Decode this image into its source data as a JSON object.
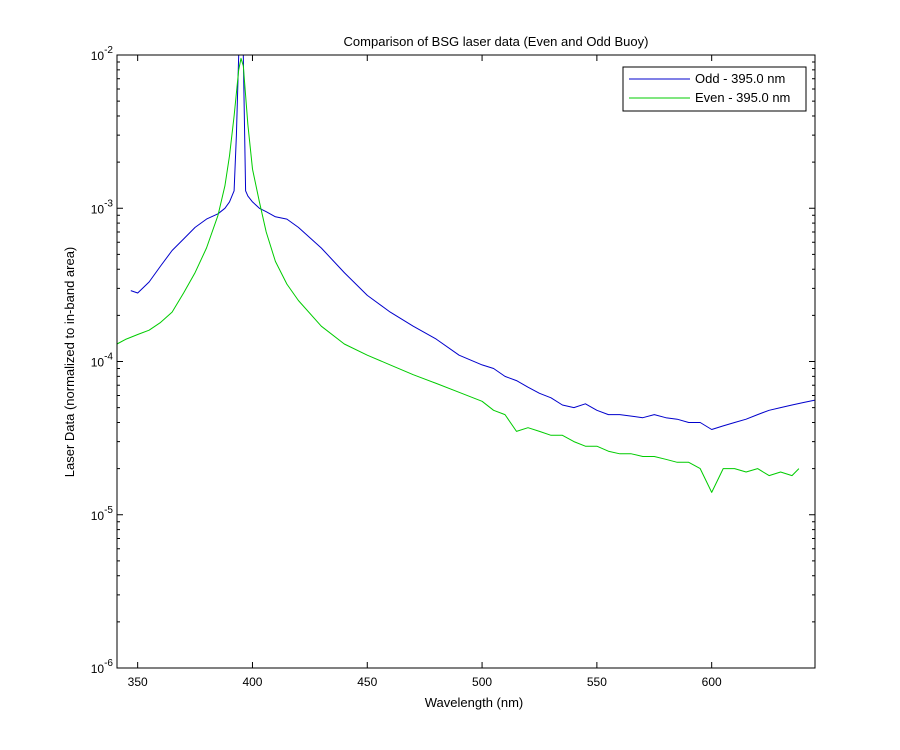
{
  "chart_data": {
    "type": "line",
    "title": "Comparison of BSG laser data (Even and Odd Buoy)",
    "xlabel": "Wavelength (nm)",
    "ylabel": "Laser Data (normalized to in-band area)",
    "xlim": [
      341,
      645
    ],
    "ylim": [
      1e-06,
      0.01
    ],
    "yscale": "log",
    "grid": false,
    "legend_position": "top-right",
    "x_ticks": [
      350,
      400,
      450,
      500,
      550,
      600
    ],
    "x_tick_labels": [
      "350",
      "400",
      "450",
      "500",
      "550",
      "600"
    ],
    "y_ticks": [
      0.01,
      0.001,
      0.0001,
      1e-05,
      1e-06
    ],
    "y_tick_labels": [
      {
        "base": "10",
        "exp": "-2"
      },
      {
        "base": "10",
        "exp": "-3"
      },
      {
        "base": "10",
        "exp": "-4"
      },
      {
        "base": "10",
        "exp": "-5"
      },
      {
        "base": "10",
        "exp": "-6"
      }
    ],
    "series": [
      {
        "name": "Odd - 395.0 nm",
        "color": "#0000cc",
        "x": [
          347,
          350,
          355,
          360,
          365,
          370,
          375,
          380,
          385,
          388,
          390,
          392,
          393,
          394,
          395,
          396,
          397,
          398,
          400,
          403,
          406,
          410,
          415,
          420,
          430,
          440,
          450,
          460,
          470,
          480,
          490,
          500,
          505,
          510,
          515,
          520,
          525,
          530,
          535,
          540,
          545,
          550,
          555,
          560,
          565,
          570,
          575,
          580,
          585,
          590,
          595,
          600,
          605,
          610,
          615,
          620,
          625,
          630,
          635,
          640,
          645
        ],
        "y": [
          0.00029,
          0.00028,
          0.00033,
          0.00042,
          0.00053,
          0.00063,
          0.00075,
          0.00085,
          0.00092,
          0.001,
          0.0011,
          0.0013,
          0.003,
          0.01,
          0.01,
          0.01,
          0.0013,
          0.0012,
          0.0011,
          0.001,
          0.00095,
          0.00088,
          0.00085,
          0.00075,
          0.00055,
          0.00038,
          0.00027,
          0.00021,
          0.00017,
          0.00014,
          0.00011,
          9.5e-05,
          9e-05,
          8e-05,
          7.5e-05,
          6.8e-05,
          6.2e-05,
          5.8e-05,
          5.2e-05,
          5e-05,
          5.3e-05,
          4.8e-05,
          4.5e-05,
          4.5e-05,
          4.4e-05,
          4.3e-05,
          4.5e-05,
          4.3e-05,
          4.2e-05,
          4e-05,
          4e-05,
          3.6e-05,
          3.8e-05,
          4e-05,
          4.2e-05,
          4.5e-05,
          4.8e-05,
          5e-05,
          5.2e-05,
          5.4e-05,
          5.6e-05
        ]
      },
      {
        "name": "Even - 395.0 nm",
        "color": "#00cc00",
        "x": [
          341,
          345,
          350,
          355,
          360,
          365,
          370,
          375,
          380,
          385,
          388,
          390,
          392,
          394,
          395,
          396,
          398,
          400,
          403,
          406,
          410,
          415,
          420,
          430,
          440,
          450,
          460,
          470,
          480,
          490,
          500,
          505,
          510,
          515,
          520,
          525,
          530,
          535,
          540,
          545,
          550,
          555,
          560,
          565,
          570,
          575,
          580,
          585,
          590,
          595,
          600,
          605,
          610,
          615,
          620,
          625,
          630,
          635,
          638
        ],
        "y": [
          0.00013,
          0.00014,
          0.00015,
          0.00016,
          0.00018,
          0.00021,
          0.00028,
          0.00038,
          0.00055,
          0.0009,
          0.0014,
          0.0022,
          0.004,
          0.008,
          0.0095,
          0.0085,
          0.0035,
          0.0018,
          0.0011,
          0.0007,
          0.00045,
          0.00032,
          0.00025,
          0.00017,
          0.00013,
          0.00011,
          9.5e-05,
          8.2e-05,
          7.2e-05,
          6.3e-05,
          5.5e-05,
          4.8e-05,
          4.5e-05,
          3.5e-05,
          3.7e-05,
          3.5e-05,
          3.3e-05,
          3.3e-05,
          3e-05,
          2.8e-05,
          2.8e-05,
          2.6e-05,
          2.5e-05,
          2.5e-05,
          2.4e-05,
          2.4e-05,
          2.3e-05,
          2.2e-05,
          2.2e-05,
          2e-05,
          1.4e-05,
          2e-05,
          2e-05,
          1.9e-05,
          2e-05,
          1.8e-05,
          1.9e-05,
          1.8e-05,
          2e-05
        ]
      }
    ]
  }
}
